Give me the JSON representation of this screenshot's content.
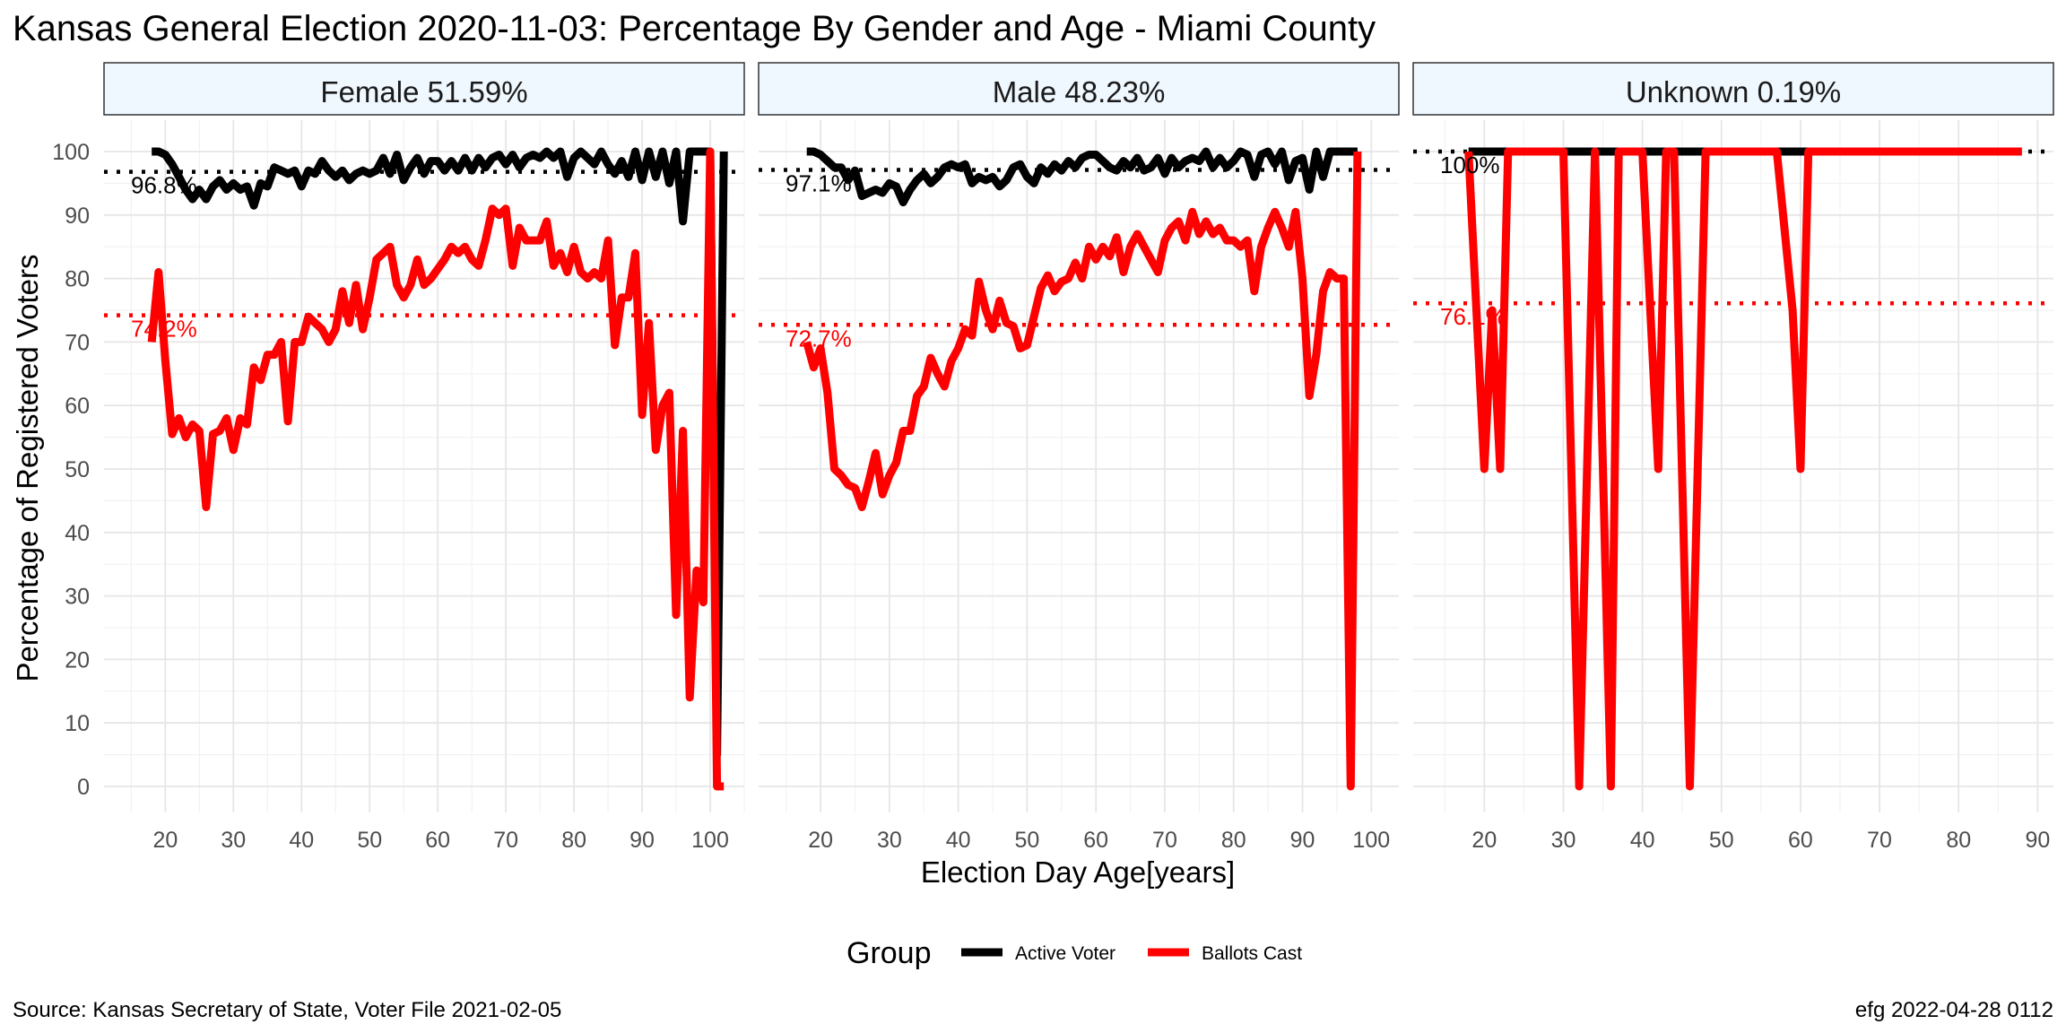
{
  "title": "Kansas General Election 2020-11-03:  Percentage By Gender and Age - Miami County",
  "caption_left": "Source:  Kansas Secretary of State, Voter File  2021-02-05",
  "caption_right": "efg 2022-04-28 0112",
  "legend": {
    "title": "Group",
    "items": [
      {
        "label": "Active Voter",
        "color": "#000000"
      },
      {
        "label": "Ballots Cast",
        "color": "#ff0000"
      }
    ]
  },
  "chart_data": {
    "type": "line",
    "xlabel": "Election Day Age[years]",
    "ylabel": "Percentage of Registered Voters",
    "ylim": [
      0,
      100
    ],
    "yticks": [
      0,
      10,
      20,
      30,
      40,
      50,
      60,
      70,
      80,
      90,
      100
    ],
    "grid": true,
    "legend_position": "bottom",
    "panels": [
      {
        "strip": "Female 51.59%",
        "xlim": [
          11,
          105
        ],
        "xticks": [
          20,
          30,
          40,
          50,
          60,
          70,
          80,
          90,
          100
        ],
        "hlines": [
          {
            "series": "Active Voter",
            "value": 96.8,
            "label": "96.8%"
          },
          {
            "series": "Ballots Cast",
            "value": 74.2,
            "label": "74.2%"
          }
        ],
        "series": [
          {
            "name": "Active Voter",
            "x": [
              18,
              19,
              20,
              21,
              22,
              23,
              24,
              25,
              26,
              27,
              28,
              29,
              30,
              31,
              32,
              33,
              34,
              35,
              36,
              37,
              38,
              39,
              40,
              41,
              42,
              43,
              44,
              45,
              46,
              47,
              48,
              49,
              50,
              51,
              52,
              53,
              54,
              55,
              56,
              57,
              58,
              59,
              60,
              61,
              62,
              63,
              64,
              65,
              66,
              67,
              68,
              69,
              70,
              71,
              72,
              73,
              74,
              75,
              76,
              77,
              78,
              79,
              80,
              81,
              82,
              83,
              84,
              85,
              86,
              87,
              88,
              89,
              90,
              91,
              92,
              93,
              94,
              95,
              96,
              97,
              98,
              99,
              100,
              101,
              102
            ],
            "y": [
              100,
              100,
              99.5,
              98,
              96,
              94,
              92.5,
              94,
              92.5,
              94.5,
              95.5,
              94,
              95,
              94,
              94.5,
              91.5,
              95,
              94.5,
              97.5,
              97,
              96.5,
              97,
              94.5,
              97,
              96.5,
              98.5,
              97,
              96,
              97,
              95.5,
              96.5,
              97,
              96.5,
              97,
              99,
              96.5,
              99.5,
              95.5,
              97.5,
              99,
              96.5,
              98.5,
              98.5,
              97,
              98.5,
              97,
              99,
              97,
              99,
              97.5,
              99,
              99.5,
              98,
              99.5,
              97.5,
              99,
              99.5,
              99,
              100,
              99,
              100,
              96,
              99,
              100,
              99,
              98,
              100,
              98,
              96.5,
              98.5,
              96,
              100,
              95.5,
              100,
              96,
              100,
              95,
              100,
              89,
              100,
              100,
              100,
              100,
              5,
              100
            ]
          },
          {
            "name": "Ballots Cast",
            "x": [
              18,
              19,
              20,
              21,
              22,
              23,
              24,
              25,
              26,
              27,
              28,
              29,
              30,
              31,
              32,
              33,
              34,
              35,
              36,
              37,
              38,
              39,
              40,
              41,
              42,
              43,
              44,
              45,
              46,
              47,
              48,
              49,
              50,
              51,
              52,
              53,
              54,
              55,
              56,
              57,
              58,
              59,
              60,
              61,
              62,
              63,
              64,
              65,
              66,
              67,
              68,
              69,
              70,
              71,
              72,
              73,
              74,
              75,
              76,
              77,
              78,
              79,
              80,
              81,
              82,
              83,
              84,
              85,
              86,
              87,
              88,
              89,
              90,
              91,
              92,
              93,
              94,
              95,
              96,
              97,
              98,
              99,
              100,
              101,
              102
            ],
            "y": [
              70,
              81,
              67,
              55.5,
              58,
              55,
              57,
              56,
              44,
              55.5,
              56,
              58,
              53,
              58,
              57,
              66,
              64,
              68,
              68,
              70,
              57.5,
              70,
              70,
              74,
              73,
              72,
              70,
              72,
              78,
              73,
              79,
              72,
              77,
              83,
              84,
              85,
              79,
              77,
              79,
              83,
              79,
              80,
              81.5,
              83,
              85,
              84,
              85,
              83,
              82,
              86,
              91,
              90,
              91,
              82,
              88,
              86,
              86,
              86,
              89,
              82,
              84,
              81,
              85,
              81,
              80,
              81,
              80,
              86,
              69.5,
              77,
              77,
              84,
              58.5,
              73,
              53,
              60,
              62,
              27,
              56,
              14,
              34,
              29,
              100,
              0,
              0
            ]
          }
        ]
      },
      {
        "strip": "Male 48.23%",
        "xlim": [
          11,
          104
        ],
        "xticks": [
          20,
          30,
          40,
          50,
          60,
          70,
          80,
          90,
          100
        ],
        "hlines": [
          {
            "series": "Active Voter",
            "value": 97.1,
            "label": "97.1%"
          },
          {
            "series": "Ballots Cast",
            "value": 72.7,
            "label": "72.7%"
          }
        ],
        "series": [
          {
            "name": "Active Voter",
            "x": [
              18,
              19,
              20,
              21,
              22,
              23,
              24,
              25,
              26,
              27,
              28,
              29,
              30,
              31,
              32,
              33,
              34,
              35,
              36,
              37,
              38,
              39,
              40,
              41,
              42,
              43,
              44,
              45,
              46,
              47,
              48,
              49,
              50,
              51,
              52,
              53,
              54,
              55,
              56,
              57,
              58,
              59,
              60,
              61,
              62,
              63,
              64,
              65,
              66,
              67,
              68,
              69,
              70,
              71,
              72,
              73,
              74,
              75,
              76,
              77,
              78,
              79,
              80,
              81,
              82,
              83,
              84,
              85,
              86,
              87,
              88,
              89,
              90,
              91,
              92,
              93,
              94,
              95,
              96,
              97,
              98
            ],
            "y": [
              100,
              100,
              99.5,
              98.5,
              97.5,
              97.5,
              95.5,
              97,
              93,
              93.5,
              94,
              93.5,
              95,
              94.5,
              92,
              94,
              95.5,
              96.5,
              95,
              96,
              97.5,
              98,
              97.5,
              98,
              95,
              96,
              95.5,
              96,
              94.5,
              95.5,
              97.5,
              98,
              96,
              95,
              97.5,
              96.5,
              98,
              97,
              98.5,
              97.5,
              99,
              99.5,
              99.5,
              98.5,
              97.5,
              97,
              98.5,
              97.5,
              99,
              97,
              97.5,
              99,
              96.5,
              99,
              97.5,
              98.5,
              99,
              98.5,
              100,
              97.5,
              99,
              97.5,
              98.5,
              100,
              99.5,
              96,
              99.5,
              100,
              98,
              100,
              95.5,
              98.5,
              99,
              94,
              100,
              96,
              100,
              100,
              100,
              100,
              100
            ]
          },
          {
            "name": "Ballots Cast",
            "x": [
              18,
              19,
              20,
              21,
              22,
              23,
              24,
              25,
              26,
              27,
              28,
              29,
              30,
              31,
              32,
              33,
              34,
              35,
              36,
              37,
              38,
              39,
              40,
              41,
              42,
              43,
              44,
              45,
              46,
              47,
              48,
              49,
              50,
              51,
              52,
              53,
              54,
              55,
              56,
              57,
              58,
              59,
              60,
              61,
              62,
              63,
              64,
              65,
              66,
              67,
              68,
              69,
              70,
              71,
              72,
              73,
              74,
              75,
              76,
              77,
              78,
              79,
              80,
              81,
              82,
              83,
              84,
              85,
              86,
              87,
              88,
              89,
              90,
              91,
              92,
              93,
              94,
              95,
              96,
              97,
              98
            ],
            "y": [
              70,
              66,
              69,
              62,
              50,
              49,
              47.5,
              47,
              44,
              48,
              52.5,
              46,
              49,
              51,
              56,
              56,
              61.5,
              63,
              67.5,
              65,
              63,
              67,
              69,
              72,
              71,
              79.5,
              75,
              72,
              76.5,
              73,
              72.5,
              69,
              69.5,
              74,
              78.5,
              80.5,
              78,
              79.5,
              80,
              82.5,
              80,
              85,
              83,
              85,
              83.5,
              86.5,
              81,
              85,
              87,
              85,
              83,
              81,
              86,
              88,
              89,
              86,
              90.5,
              87,
              89,
              87,
              88,
              86,
              86,
              85,
              86,
              78,
              85,
              88,
              90.5,
              88,
              85,
              90.5,
              80,
              61.5,
              68,
              78,
              81,
              80,
              80,
              0,
              100
            ]
          }
        ]
      },
      {
        "strip": "Unknown 0.19%",
        "xlim": [
          11,
          92
        ],
        "xticks": [
          20,
          30,
          40,
          50,
          60,
          70,
          80,
          90
        ],
        "hlines": [
          {
            "series": "Active Voter",
            "value": 100,
            "label": "100%"
          },
          {
            "series": "Ballots Cast",
            "value": 76.1,
            "label": "76.1%"
          }
        ],
        "series": [
          {
            "name": "Active Voter",
            "x": [
              18,
              88
            ],
            "y": [
              100,
              100
            ]
          },
          {
            "name": "Ballots Cast",
            "x": [
              18,
              19,
              20,
              21,
              22,
              23,
              30,
              31,
              32,
              33,
              34,
              35,
              36,
              37,
              38,
              39,
              40,
              41,
              42,
              43,
              44,
              45,
              46,
              47,
              48,
              49,
              56,
              57,
              58,
              59,
              60,
              61,
              62,
              88
            ],
            "y": [
              100,
              75,
              50,
              75,
              50,
              100,
              100,
              50,
              0,
              50,
              100,
              50,
              0,
              100,
              100,
              100,
              100,
              75,
              50,
              100,
              100,
              50,
              0,
              50,
              100,
              100,
              100,
              100,
              87.5,
              75,
              50,
              100,
              100,
              100
            ]
          }
        ]
      }
    ]
  }
}
